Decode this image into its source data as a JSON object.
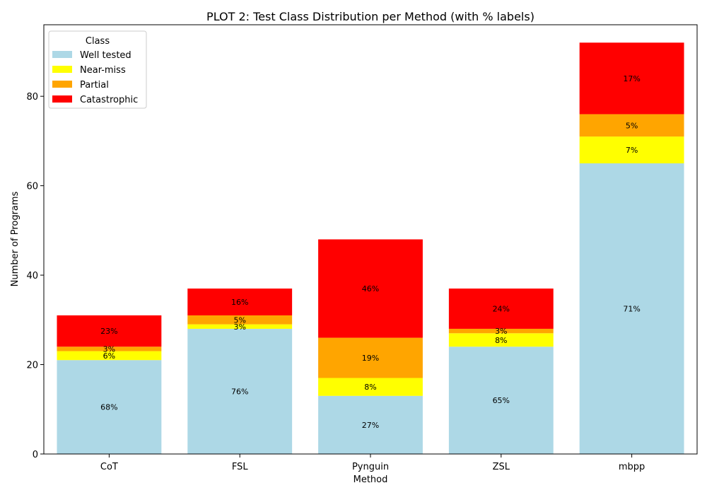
{
  "chart_data": {
    "type": "bar",
    "stacked": true,
    "title": "PLOT 2: Test Class Distribution per Method (with % labels)",
    "xlabel": "Method",
    "ylabel": "Number of Programs",
    "categories": [
      "CoT",
      "FSL",
      "Pynguin",
      "ZSL",
      "mbpp"
    ],
    "ylim": [
      0,
      96
    ],
    "yticks": [
      "0",
      "20",
      "40",
      "60",
      "80"
    ],
    "legend": {
      "title": "Class",
      "position": "top-left"
    },
    "grid": false,
    "series": [
      {
        "name": "Well tested",
        "color": "#add8e6",
        "values": [
          21,
          28,
          13,
          24,
          65
        ],
        "labels": [
          "68%",
          "76%",
          "27%",
          "65%",
          "71%"
        ]
      },
      {
        "name": "Near-miss",
        "color": "#ffff00",
        "values": [
          2,
          1,
          4,
          3,
          6
        ],
        "labels": [
          "6%",
          "3%",
          "8%",
          "8%",
          "7%"
        ]
      },
      {
        "name": "Partial",
        "color": "#ffa500",
        "values": [
          1,
          2,
          9,
          1,
          5
        ],
        "labels": [
          "3%",
          "5%",
          "19%",
          "3%",
          "5%"
        ]
      },
      {
        "name": "Catastrophic",
        "color": "#ff0000",
        "values": [
          7,
          6,
          22,
          9,
          16
        ],
        "labels": [
          "23%",
          "16%",
          "46%",
          "24%",
          "17%"
        ]
      }
    ]
  }
}
